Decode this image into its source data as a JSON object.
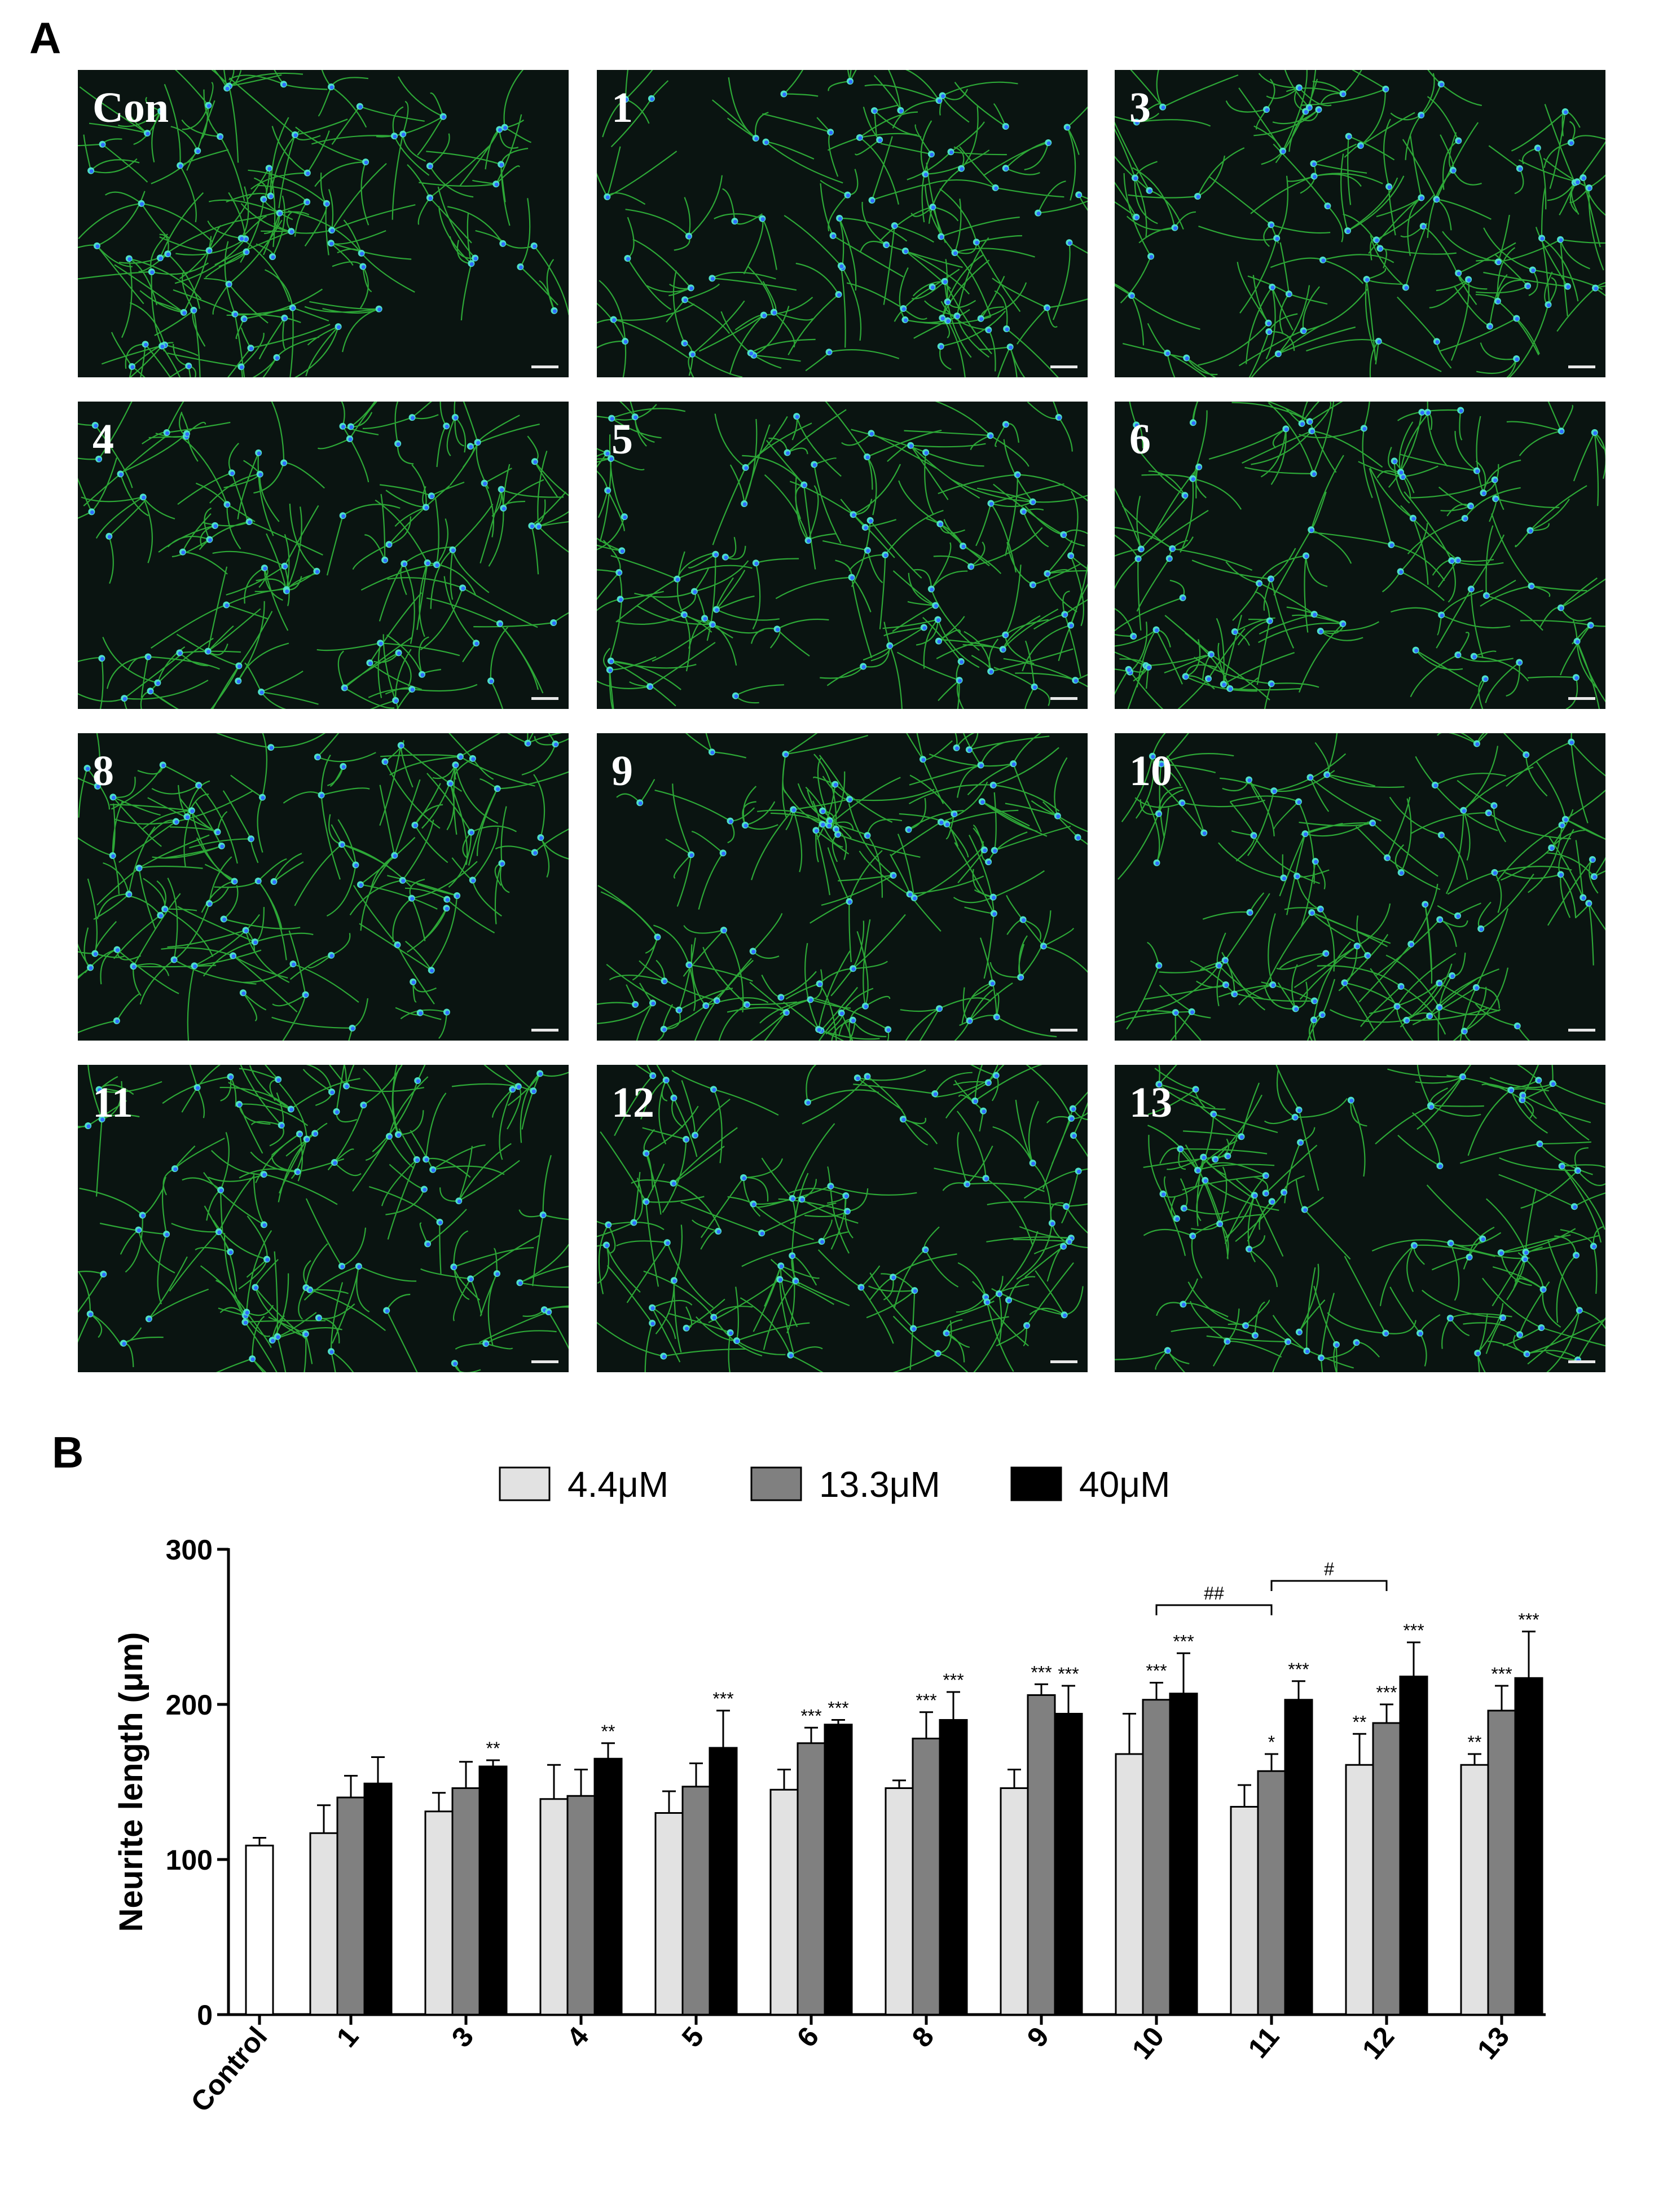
{
  "panel_labels": {
    "a": "A",
    "b": "B"
  },
  "micrographs": [
    {
      "label": "Con"
    },
    {
      "label": "1"
    },
    {
      "label": "3"
    },
    {
      "label": "4"
    },
    {
      "label": "5"
    },
    {
      "label": "6"
    },
    {
      "label": "8"
    },
    {
      "label": "9"
    },
    {
      "label": "10"
    },
    {
      "label": "11"
    },
    {
      "label": "12"
    },
    {
      "label": "13"
    }
  ],
  "colors": {
    "neurite": "#34c23e",
    "nucleus": "#2f6cff",
    "soma": "#4ee0c8",
    "background": "#0a1411",
    "series_4_4": "#e2e2e2",
    "series_13_3": "#808080",
    "series_40": "#000000",
    "control": "#ffffff"
  },
  "chart_data": {
    "type": "bar",
    "ylabel": "Neurite length (μm)",
    "ylim": [
      0,
      300
    ],
    "yticks": [
      0,
      100,
      200,
      300
    ],
    "legend_position": "top",
    "categories": [
      "Control",
      "1",
      "3",
      "4",
      "5",
      "6",
      "8",
      "9",
      "10",
      "11",
      "12",
      "13"
    ],
    "control": {
      "value": 109,
      "error": 5,
      "sig": ""
    },
    "series": [
      {
        "name": "4.4μM",
        "values": [
          null,
          117,
          131,
          139,
          130,
          145,
          146,
          146,
          168,
          134,
          161,
          161
        ],
        "errors": [
          null,
          18,
          12,
          22,
          14,
          13,
          5,
          12,
          26,
          14,
          20,
          7
        ],
        "sig": [
          "",
          "",
          "",
          "",
          "",
          "",
          "",
          "",
          "",
          "",
          "**",
          "**"
        ]
      },
      {
        "name": "13.3μM",
        "values": [
          null,
          140,
          146,
          141,
          147,
          175,
          178,
          206,
          203,
          157,
          188,
          196
        ],
        "errors": [
          null,
          14,
          17,
          17,
          15,
          10,
          17,
          7,
          11,
          11,
          12,
          16
        ],
        "sig": [
          "",
          "",
          "",
          "",
          "",
          "***",
          "***",
          "***",
          "***",
          "*",
          "***",
          "***"
        ]
      },
      {
        "name": "40μM",
        "values": [
          null,
          149,
          160,
          165,
          172,
          187,
          190,
          194,
          207,
          203,
          218,
          217
        ],
        "errors": [
          null,
          17,
          4,
          10,
          24,
          3,
          18,
          18,
          26,
          12,
          22,
          30
        ],
        "sig": [
          "",
          "",
          "**",
          "**",
          "***",
          "***",
          "***",
          "***",
          "***",
          "***",
          "***",
          "***"
        ]
      }
    ],
    "brackets": [
      {
        "from": "10",
        "to": "11",
        "label": "##"
      },
      {
        "from": "11",
        "to": "12",
        "label": "#"
      }
    ]
  }
}
